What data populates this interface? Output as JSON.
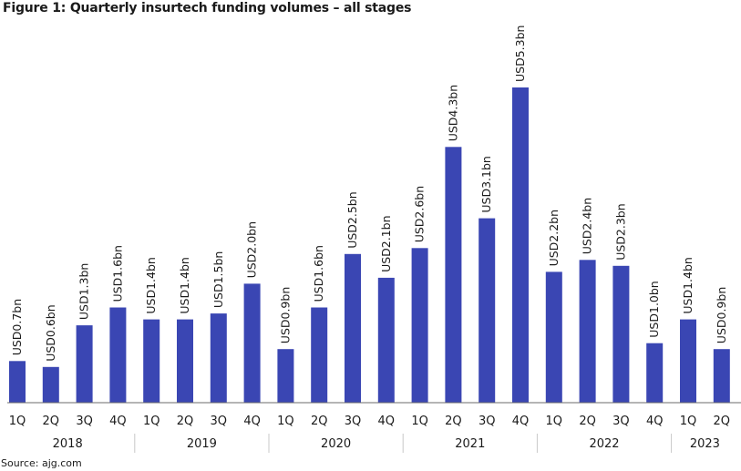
{
  "figure": {
    "title": "Figure 1: Quarterly insurtech funding volumes – all stages",
    "source": "Source: ajg.com"
  },
  "colors": {
    "bar": "#3a46b3",
    "axis": "#6b6b6b",
    "separator": "#c8c8c8"
  },
  "chart_data": {
    "type": "bar",
    "title": "Figure 1: Quarterly insurtech funding volumes – all stages",
    "xlabel": "",
    "ylabel": "",
    "ylim": [
      0,
      5.3
    ],
    "grid": false,
    "legend": "none",
    "years": [
      {
        "label": "2018",
        "quarters": [
          "1Q",
          "2Q",
          "3Q",
          "4Q"
        ]
      },
      {
        "label": "2019",
        "quarters": [
          "1Q",
          "2Q",
          "3Q",
          "4Q"
        ]
      },
      {
        "label": "2020",
        "quarters": [
          "1Q",
          "2Q",
          "3Q",
          "4Q"
        ]
      },
      {
        "label": "2021",
        "quarters": [
          "1Q",
          "2Q",
          "3Q",
          "4Q"
        ]
      },
      {
        "label": "2022",
        "quarters": [
          "1Q",
          "2Q",
          "3Q",
          "4Q"
        ]
      },
      {
        "label": "2023",
        "quarters": [
          "1Q",
          "2Q"
        ]
      }
    ],
    "categories": [
      "1Q 2018",
      "2Q 2018",
      "3Q 2018",
      "4Q 2018",
      "1Q 2019",
      "2Q 2019",
      "3Q 2019",
      "4Q 2019",
      "1Q 2020",
      "2Q 2020",
      "3Q 2020",
      "4Q 2020",
      "1Q 2021",
      "2Q 2021",
      "3Q 2021",
      "4Q 2021",
      "1Q 2022",
      "2Q 2022",
      "3Q 2022",
      "4Q 2022",
      "1Q 2023",
      "2Q 2023"
    ],
    "values": [
      0.7,
      0.6,
      1.3,
      1.6,
      1.4,
      1.4,
      1.5,
      2.0,
      0.9,
      1.6,
      2.5,
      2.1,
      2.6,
      4.3,
      3.1,
      5.3,
      2.2,
      2.4,
      2.3,
      1.0,
      1.4,
      0.9
    ],
    "labels": [
      "USD0.7bn",
      "USD0.6bn",
      "USD1.3bn",
      "USD1.6bn",
      "USD1.4bn",
      "USD1.4bn",
      "USD1.5bn",
      "USD2.0bn",
      "USD0.9bn",
      "USD1.6bn",
      "USD2.5bn",
      "USD2.1bn",
      "USD2.6bn",
      "USD4.3bn",
      "USD3.1bn",
      "USD5.3bn",
      "USD2.2bn",
      "USD2.4bn",
      "USD2.3bn",
      "USD1.0bn",
      "USD1.4bn",
      "USD0.9bn"
    ]
  }
}
